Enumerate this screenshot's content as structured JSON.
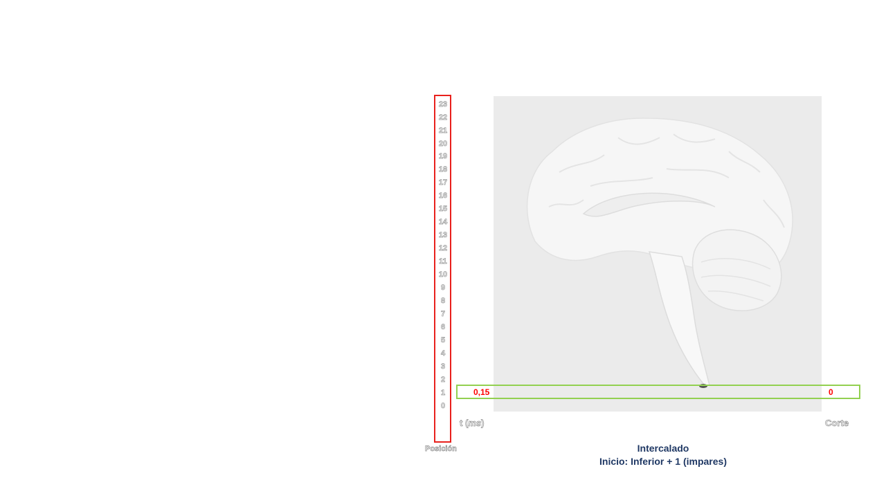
{
  "slice_numbers": [
    "23",
    "22",
    "21",
    "20",
    "19",
    "18",
    "17",
    "16",
    "15",
    "14",
    "13",
    "12",
    "11",
    "10",
    "9",
    "8",
    "7",
    "6",
    "5",
    "4",
    "3",
    "2",
    "1",
    "0"
  ],
  "row": {
    "left_value": "0,15",
    "right_value": "0"
  },
  "labels": {
    "time_prefix": "t (",
    "time_unit": "ms",
    "time_suffix": ")",
    "corte": "Corte",
    "posicion": "Posición"
  },
  "caption": {
    "line1": "Intercalado",
    "line2": "Inicio: Inferior + 1 (impares)"
  },
  "colors": {
    "slice_box_border": "#e8201c",
    "row_box_border": "#92d050",
    "value_text": "#ff0000",
    "caption_text": "#1f3864",
    "panel_background": "#ebebeb"
  }
}
